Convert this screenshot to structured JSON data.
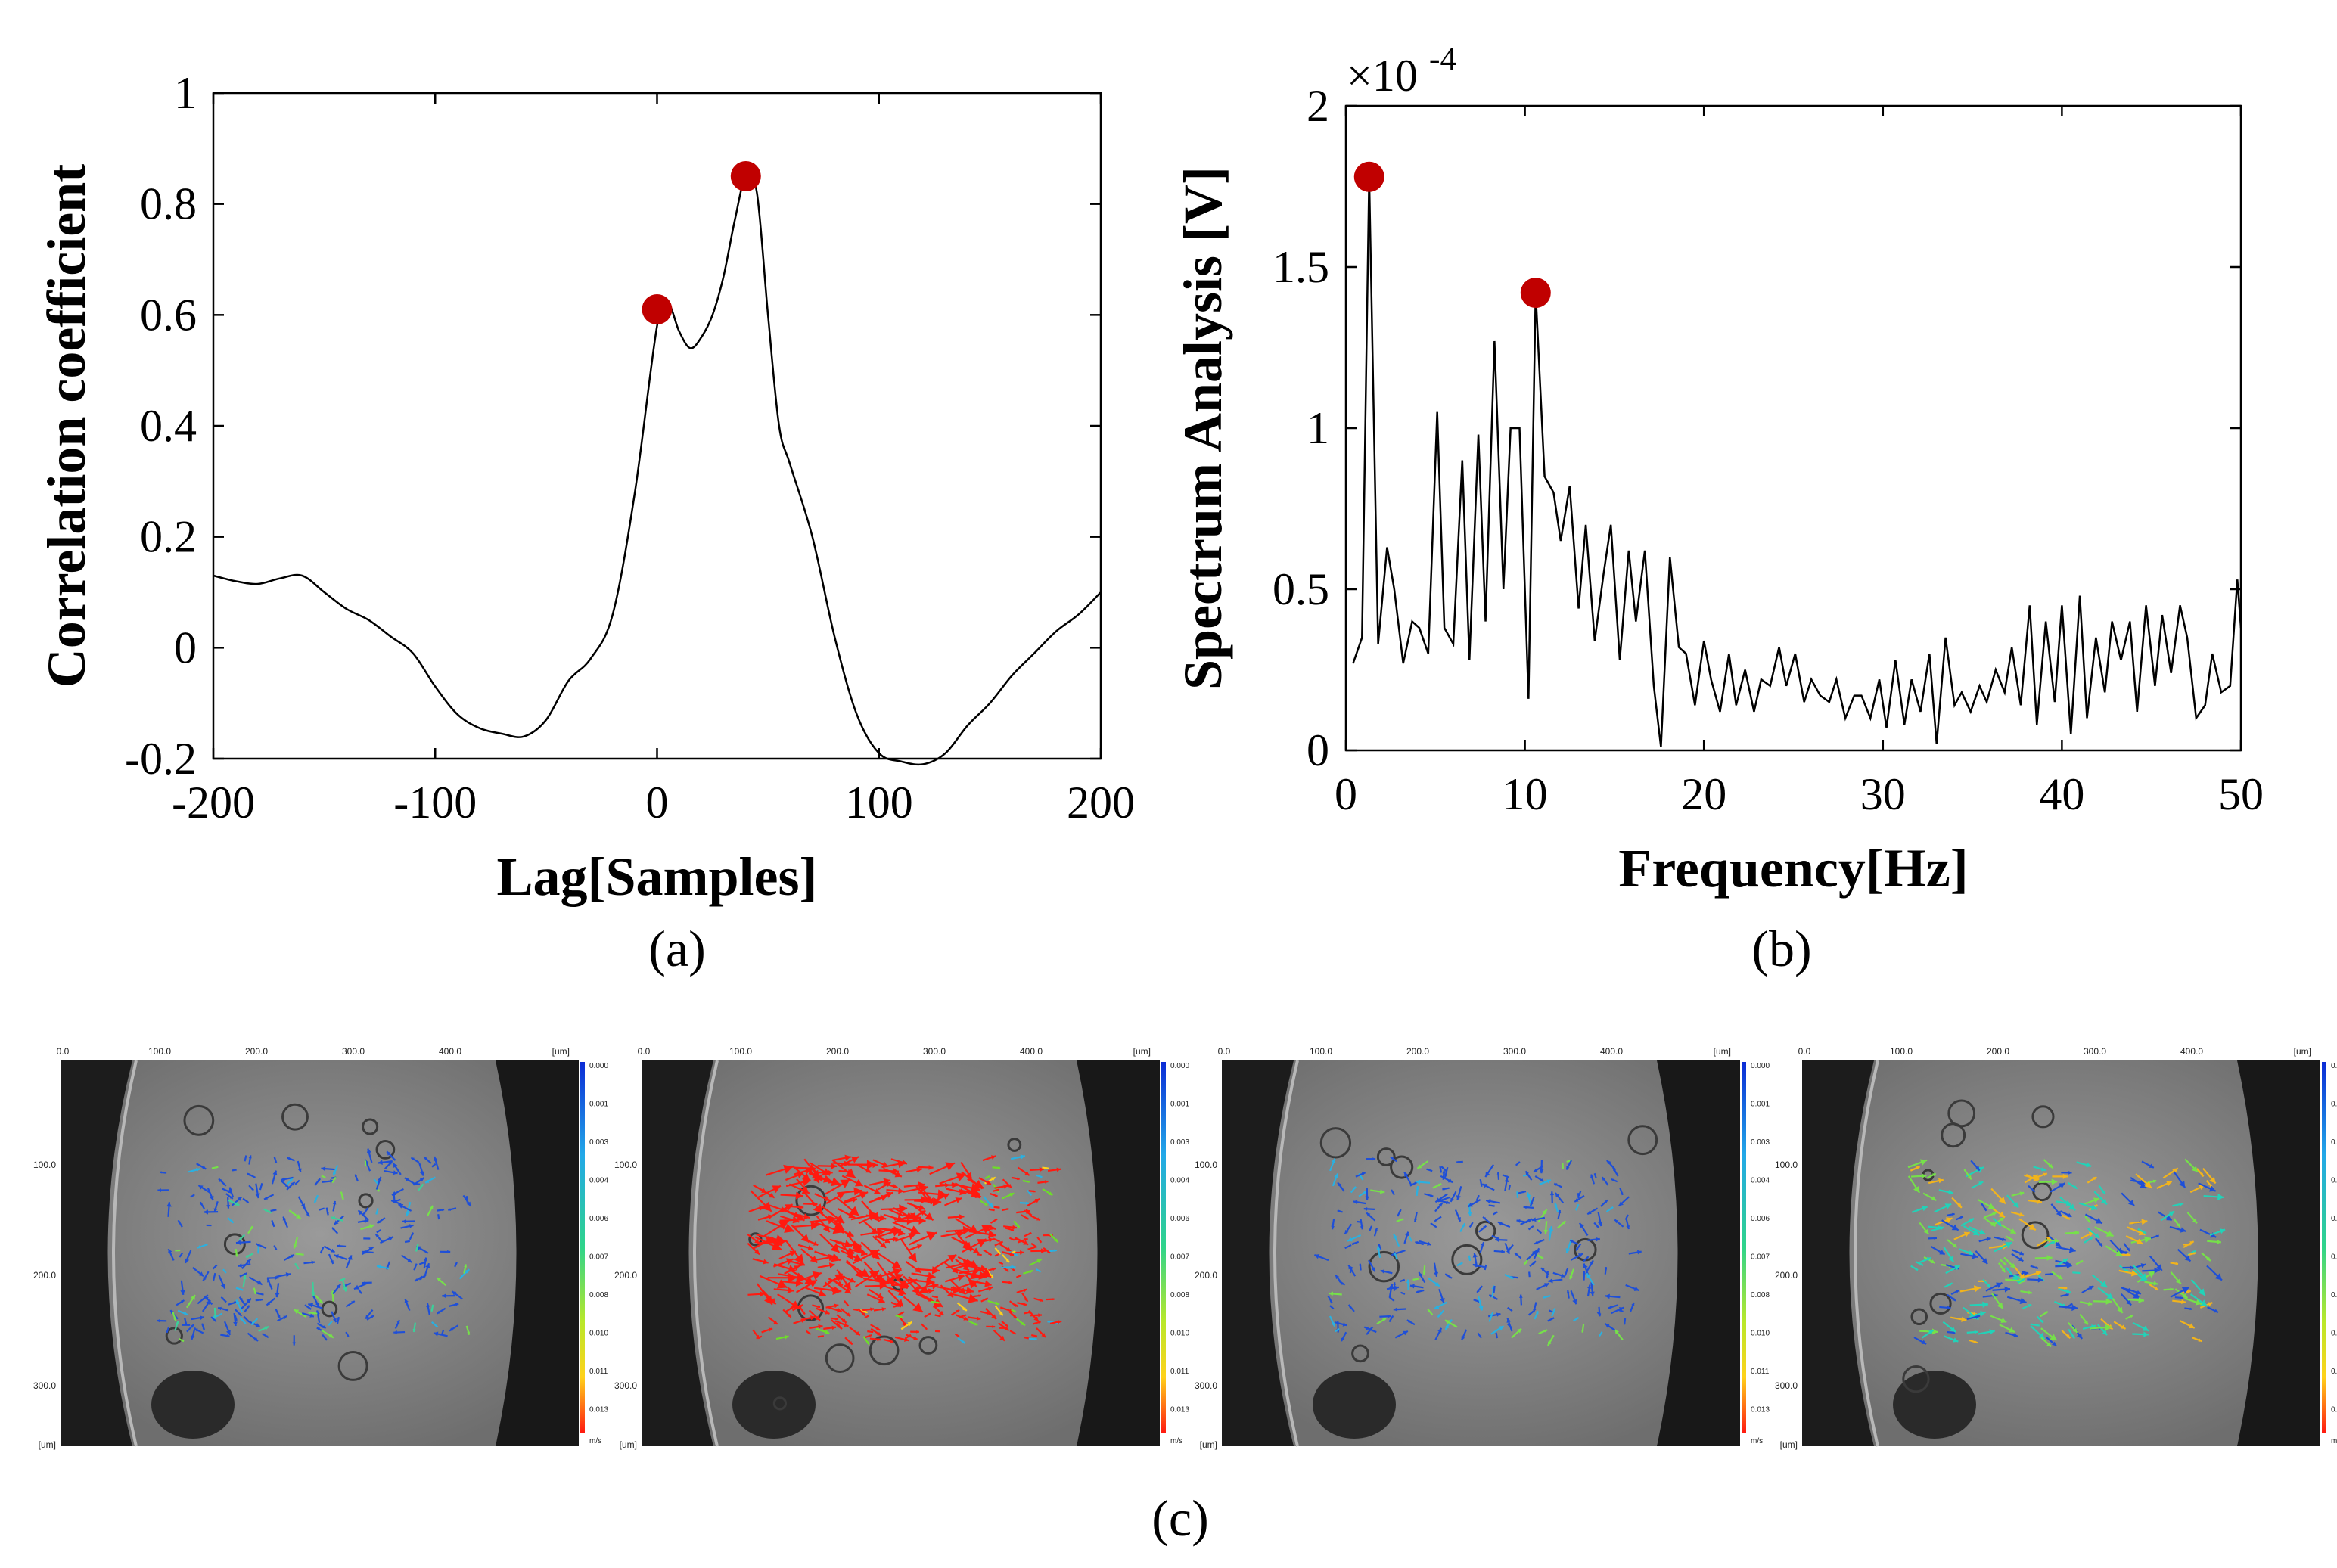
{
  "chart_data": [
    {
      "type": "line",
      "panel": "(a)",
      "xlabel": "Lag[Samples]",
      "ylabel": "Correlation coefficient",
      "xlim": [
        -200,
        200
      ],
      "ylim": [
        -0.2,
        1
      ],
      "xticks": [
        "-200",
        "-100",
        "0",
        "100",
        "200"
      ],
      "yticks": [
        "-0.2",
        "0",
        "0.2",
        "0.4",
        "0.6",
        "0.8",
        "1"
      ],
      "grid": false,
      "series": [
        {
          "x": [
            -200,
            -190,
            -180,
            -170,
            -160,
            -150,
            -140,
            -130,
            -120,
            -110,
            -100,
            -90,
            -80,
            -70,
            -60,
            -50,
            -40,
            -30,
            -20,
            -10,
            0,
            5,
            10,
            15,
            20,
            25,
            30,
            35,
            40,
            45,
            50,
            55,
            60,
            70,
            80,
            90,
            100,
            110,
            120,
            130,
            140,
            150,
            160,
            170,
            180,
            190,
            200
          ],
          "y": [
            0.13,
            0.12,
            0.115,
            0.125,
            0.13,
            0.1,
            0.07,
            0.05,
            0.02,
            -0.01,
            -0.07,
            -0.12,
            -0.145,
            -0.155,
            -0.16,
            -0.13,
            -0.06,
            -0.02,
            0.06,
            0.28,
            0.58,
            0.62,
            0.57,
            0.54,
            0.56,
            0.6,
            0.67,
            0.77,
            0.85,
            0.82,
            0.6,
            0.4,
            0.33,
            0.2,
            0.02,
            -0.12,
            -0.19,
            -0.205,
            -0.21,
            -0.19,
            -0.14,
            -0.1,
            -0.05,
            -0.01,
            0.03,
            0.06,
            0.1
          ]
        }
      ],
      "markers": [
        {
          "x": 0,
          "y": 0.61
        },
        {
          "x": 40,
          "y": 0.85
        }
      ],
      "marker_color": "#c00000"
    },
    {
      "type": "line",
      "panel": "(b)",
      "xlabel": "Frequency[Hz]",
      "ylabel": "Spectrum Analysis [V]",
      "exponent_label": "×10",
      "exponent_power": "-4",
      "xlim": [
        0,
        50
      ],
      "ylim": [
        0,
        2
      ],
      "xticks": [
        "0",
        "10",
        "20",
        "30",
        "40",
        "50"
      ],
      "yticks": [
        "0",
        "0.5",
        "1",
        "1.5",
        "2"
      ],
      "grid": false,
      "series": [
        {
          "x": [
            0.4,
            0.9,
            1.3,
            1.8,
            2.3,
            2.7,
            3.2,
            3.7,
            4.1,
            4.6,
            5.1,
            5.5,
            6.0,
            6.5,
            6.9,
            7.4,
            7.8,
            8.3,
            8.8,
            9.2,
            9.7,
            10.2,
            10.6,
            11.1,
            11.6,
            12.0,
            12.5,
            13.0,
            13.4,
            13.9,
            14.4,
            14.8,
            15.3,
            15.8,
            16.2,
            16.7,
            17.2,
            17.6,
            18.1,
            18.6,
            19.0,
            19.5,
            20.0,
            20.4,
            20.9,
            21.4,
            21.8,
            22.3,
            22.8,
            23.2,
            23.7,
            24.2,
            24.6,
            25.1,
            25.6,
            26.0,
            26.5,
            27.0,
            27.4,
            27.9,
            28.4,
            28.8,
            29.3,
            29.8,
            30.2,
            30.7,
            31.2,
            31.6,
            32.1,
            32.6,
            33.0,
            33.5,
            34.0,
            34.4,
            34.9,
            35.4,
            35.8,
            36.3,
            36.8,
            37.2,
            37.7,
            38.2,
            38.6,
            39.1,
            39.6,
            40.0,
            40.5,
            41.0,
            41.4,
            41.9,
            42.4,
            42.8,
            43.3,
            43.8,
            44.2,
            44.7,
            45.2,
            45.6,
            46.1,
            46.6,
            47.0,
            47.5,
            48.0,
            48.4,
            48.9,
            49.4,
            49.8,
            50.0
          ],
          "y": [
            0.27,
            0.35,
            1.78,
            0.33,
            0.63,
            0.5,
            0.27,
            0.4,
            0.38,
            0.3,
            1.05,
            0.38,
            0.33,
            0.9,
            0.28,
            0.98,
            0.4,
            1.27,
            0.5,
            1.0,
            1.0,
            0.16,
            1.42,
            0.85,
            0.8,
            0.65,
            0.82,
            0.44,
            0.7,
            0.34,
            0.55,
            0.7,
            0.28,
            0.62,
            0.4,
            0.62,
            0.2,
            0.01,
            0.6,
            0.32,
            0.3,
            0.14,
            0.34,
            0.22,
            0.12,
            0.3,
            0.14,
            0.25,
            0.12,
            0.22,
            0.2,
            0.32,
            0.2,
            0.3,
            0.15,
            0.22,
            0.17,
            0.15,
            0.22,
            0.1,
            0.17,
            0.17,
            0.1,
            0.22,
            0.07,
            0.28,
            0.08,
            0.22,
            0.12,
            0.3,
            0.02,
            0.35,
            0.14,
            0.18,
            0.12,
            0.2,
            0.15,
            0.25,
            0.18,
            0.32,
            0.14,
            0.45,
            0.08,
            0.4,
            0.15,
            0.45,
            0.05,
            0.48,
            0.1,
            0.35,
            0.18,
            0.4,
            0.28,
            0.4,
            0.12,
            0.45,
            0.2,
            0.42,
            0.24,
            0.45,
            0.35,
            0.1,
            0.14,
            0.3,
            0.18,
            0.2,
            0.53,
            0.38
          ],
          "scale": "×1e-4"
        }
      ],
      "markers": [
        {
          "x": 1.3,
          "y": 1.78
        },
        {
          "x": 10.6,
          "y": 1.42
        }
      ],
      "marker_color": "#c00000"
    }
  ],
  "captions": {
    "a": "(a)",
    "b": "(b)",
    "c": "(c)"
  },
  "piv_panels": [
    {
      "name": "piv-frame-1",
      "dominant_color": "#1e4fd8",
      "accent_colors": [
        "#2bb0e0",
        "#3ccf9a",
        "#76e04a"
      ]
    },
    {
      "name": "piv-frame-2",
      "dominant_color": "#ff1a10",
      "accent_colors": [
        "#ffd21a",
        "#6edc2a",
        "#2bb0e0"
      ]
    },
    {
      "name": "piv-frame-3",
      "dominant_color": "#1e4fd8",
      "accent_colors": [
        "#2bb0e0",
        "#76e04a"
      ]
    },
    {
      "name": "piv-frame-4",
      "dominant_color": "#22d2b8",
      "accent_colors": [
        "#76e04a",
        "#f2b41c",
        "#1e4fd8"
      ]
    }
  ],
  "piv_axes": {
    "x_ticks": [
      "0.0",
      "100.0",
      "200.0",
      "300.0",
      "400.0"
    ],
    "y_ticks": [
      "100.0",
      "200.0",
      "300.0"
    ],
    "unit_top": "[um]",
    "unit_corner": "[um]",
    "colorbar_ticks": [
      "0.000",
      "0.001",
      "0.003",
      "0.004",
      "0.006",
      "0.007",
      "0.008",
      "0.010",
      "0.011",
      "0.013"
    ],
    "colorbar_unit": "m/s"
  }
}
